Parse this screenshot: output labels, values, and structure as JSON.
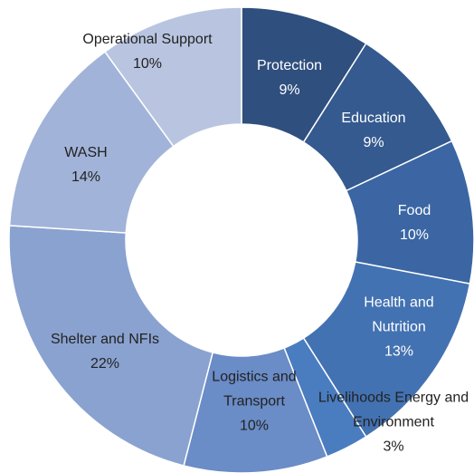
{
  "chart_data": {
    "type": "donut",
    "categories": [
      "Protection",
      "Education",
      "Food",
      "Health and Nutrition",
      "Livelihoods Energy and Environment",
      "Logistics and Transport",
      "Shelter and NFIs",
      "WASH",
      "Operational Support"
    ],
    "values": [
      9,
      9,
      10,
      13,
      3,
      10,
      22,
      14,
      10
    ],
    "value_labels": [
      "9%",
      "9%",
      "10%",
      "13%",
      "3%",
      "10%",
      "22%",
      "14%",
      "10%"
    ],
    "colors": [
      "#2f4f7e",
      "#345a8f",
      "#3b66a3",
      "#4372b2",
      "#4a7cc0",
      "#6a8cc7",
      "#8aa2d0",
      "#a1b3d8",
      "#b9c5e0"
    ]
  }
}
